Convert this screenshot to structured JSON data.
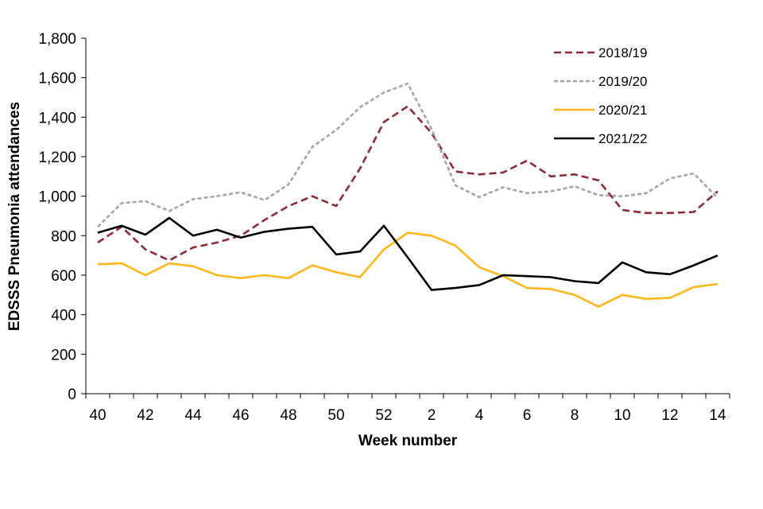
{
  "chart_data": {
    "type": "line",
    "title": "",
    "xlabel": "Week number",
    "ylabel": "EDSSS Pneumonia  attendances",
    "ylim": [
      0,
      1800
    ],
    "ytick_step": 200,
    "yticks": [
      "0",
      "200",
      "400",
      "600",
      "800",
      "1,000",
      "1,200",
      "1,400",
      "1,600",
      "1,800"
    ],
    "categories": [
      "40",
      "41",
      "42",
      "43",
      "44",
      "45",
      "46",
      "47",
      "48",
      "49",
      "50",
      "51",
      "52",
      "1",
      "2",
      "3",
      "4",
      "5",
      "6",
      "7",
      "8",
      "9",
      "10",
      "11",
      "12",
      "13",
      "14"
    ],
    "x_tick_labels": [
      "40",
      "42",
      "44",
      "46",
      "48",
      "50",
      "52",
      "2",
      "4",
      "6",
      "8",
      "10",
      "12",
      "14"
    ],
    "legend_position": "top-right",
    "series": [
      {
        "name": "2018/19",
        "color": "#8B2B3A",
        "dash": "dashed",
        "values": [
          765,
          845,
          730,
          675,
          740,
          765,
          800,
          880,
          950,
          1000,
          950,
          1140,
          1375,
          1455,
          1320,
          1125,
          1110,
          1120,
          1180,
          1100,
          1110,
          1080,
          930,
          915,
          915,
          920,
          1025
        ]
      },
      {
        "name": "2019/20",
        "color": "#A6A6A6",
        "dash": "dotted",
        "values": [
          845,
          965,
          975,
          925,
          985,
          1000,
          1020,
          980,
          1060,
          1250,
          1335,
          1450,
          1525,
          1570,
          1340,
          1055,
          995,
          1045,
          1015,
          1025,
          1050,
          1005,
          1000,
          1015,
          1090,
          1115,
          990
        ]
      },
      {
        "name": "2020/21",
        "color": "#FFB81C",
        "dash": "solid",
        "values": [
          655,
          660,
          600,
          660,
          645,
          600,
          585,
          600,
          585,
          650,
          615,
          590,
          730,
          815,
          800,
          750,
          640,
          595,
          535,
          530,
          500,
          440,
          500,
          480,
          485,
          540,
          555
        ]
      },
      {
        "name": "2021/22",
        "color": "#000000",
        "dash": "solid",
        "values": [
          815,
          850,
          805,
          890,
          800,
          830,
          790,
          820,
          835,
          845,
          705,
          720,
          850,
          690,
          525,
          535,
          550,
          600,
          595,
          590,
          570,
          560,
          665,
          615,
          605,
          650,
          700
        ]
      }
    ]
  }
}
